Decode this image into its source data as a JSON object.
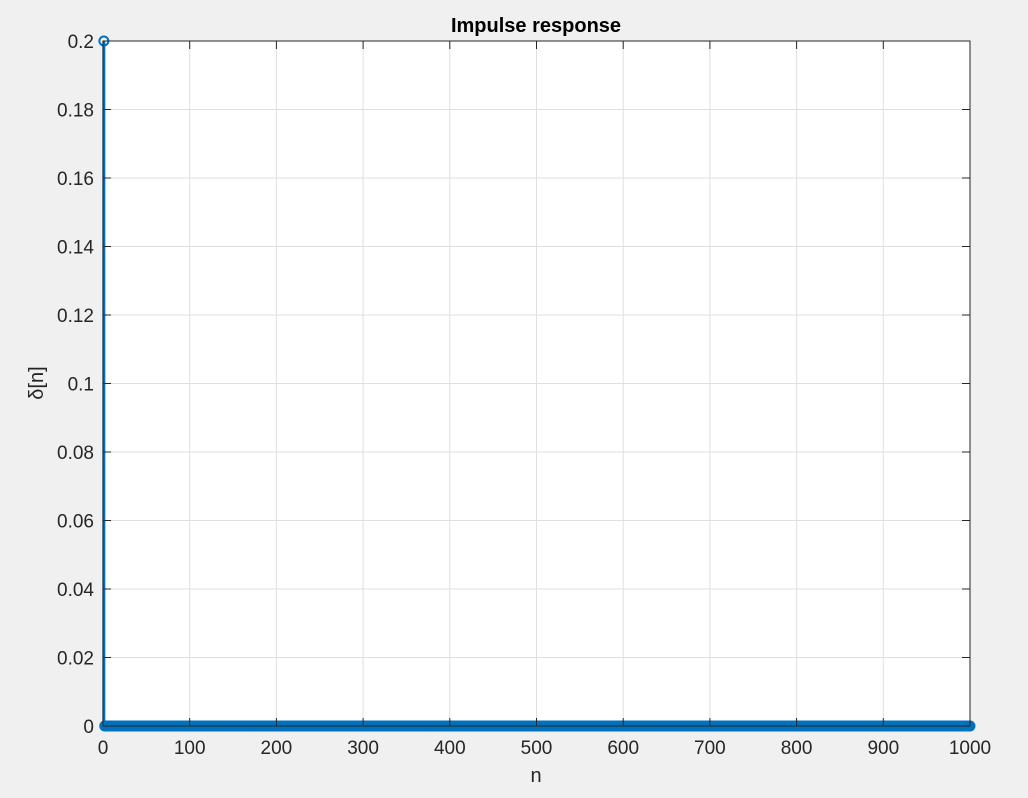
{
  "chart_data": {
    "type": "stem",
    "title": "Impulse response",
    "xlabel": "n",
    "ylabel": "δ[n]",
    "xlim": [
      0,
      1000
    ],
    "ylim": [
      0,
      0.2
    ],
    "xticks": [
      0,
      100,
      200,
      300,
      400,
      500,
      600,
      700,
      800,
      900,
      1000
    ],
    "yticks": [
      0,
      0.02,
      0.04,
      0.06,
      0.08,
      0.1,
      0.12,
      0.14,
      0.16,
      0.18,
      0.2
    ],
    "xtick_labels": [
      "0",
      "100",
      "200",
      "300",
      "400",
      "500",
      "600",
      "700",
      "800",
      "900",
      "1000"
    ],
    "ytick_labels": [
      "0",
      "0.02",
      "0.04",
      "0.06",
      "0.08",
      "0.1",
      "0.12",
      "0.14",
      "0.16",
      "0.18",
      "0.2"
    ],
    "grid": true,
    "series": [
      {
        "color": "#0072bd",
        "marker": "circle",
        "x_start": 1,
        "x_end": 1000,
        "default_value": 0,
        "nonzero": [
          {
            "x": 1,
            "y": 0.2
          }
        ]
      }
    ]
  }
}
